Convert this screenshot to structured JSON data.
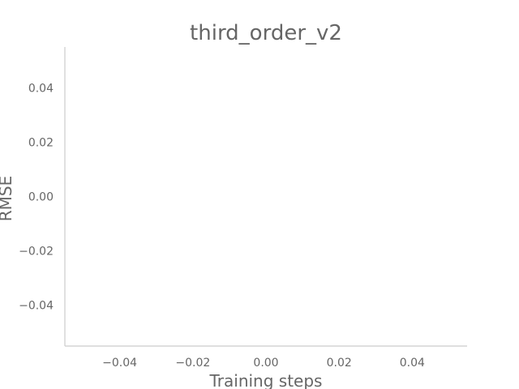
{
  "chart_data": {
    "type": "line",
    "title": "third_order_v2",
    "xlabel": "Training steps",
    "ylabel": "RMSE",
    "xlim": [
      -0.055,
      0.055
    ],
    "ylim": [
      -0.055,
      0.055
    ],
    "xticks": [
      -0.04,
      -0.02,
      0.0,
      0.02,
      0.04
    ],
    "yticks": [
      -0.04,
      -0.02,
      0.0,
      0.02,
      0.04
    ],
    "xtick_labels": [
      "−0.04",
      "−0.02",
      "0.00",
      "0.02",
      "0.04"
    ],
    "ytick_labels": [
      "−0.04",
      "−0.02",
      "0.00",
      "0.02",
      "0.04"
    ],
    "grid": false,
    "series": [],
    "colors": {
      "axis": "#cccccc",
      "text": "#666666"
    }
  }
}
